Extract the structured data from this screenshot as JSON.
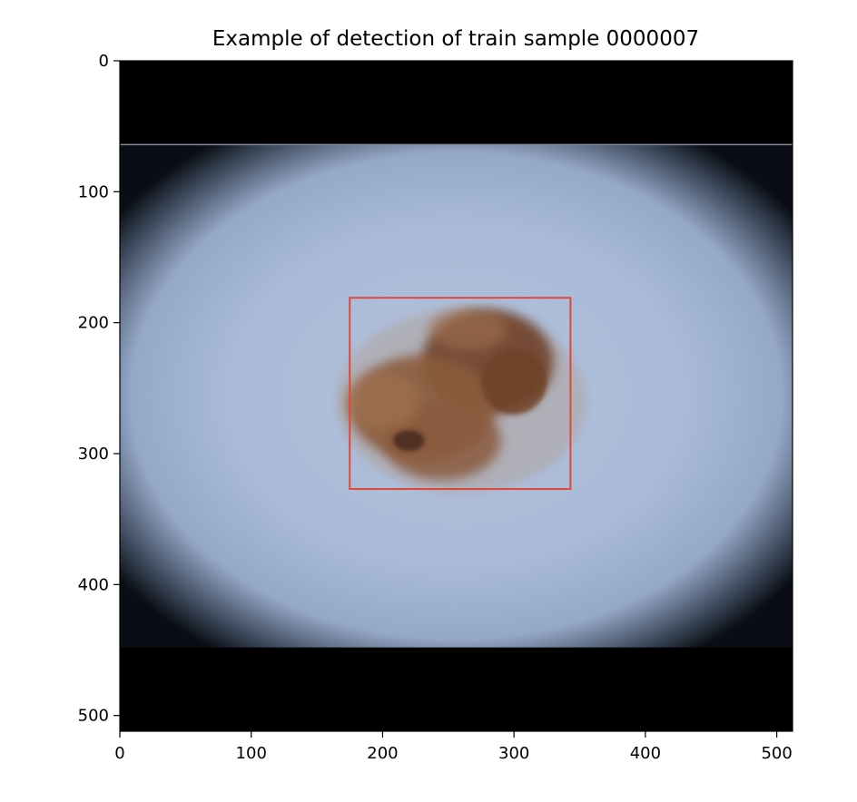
{
  "title": "Example of detection of train sample 0000007",
  "image": {
    "width": 512,
    "height": 512,
    "black_band_top_end": 64,
    "black_band_bottom_start": 448,
    "skin_color": "#a9bbd9",
    "vignette_color": "#0d121a",
    "lesion_colors": [
      "#8a5b3c",
      "#6e4128",
      "#a0714e",
      "#3d2419"
    ]
  },
  "detection_box": {
    "x_min": 175,
    "y_min": 181,
    "x_max": 343,
    "y_max": 327,
    "color": "#e0473a"
  },
  "axes": {
    "x_ticks": [
      "0",
      "100",
      "200",
      "300",
      "400",
      "500"
    ],
    "y_ticks": [
      "0",
      "100",
      "200",
      "300",
      "400",
      "500"
    ],
    "xlim": [
      0,
      512
    ],
    "ylim": [
      512,
      0
    ]
  }
}
